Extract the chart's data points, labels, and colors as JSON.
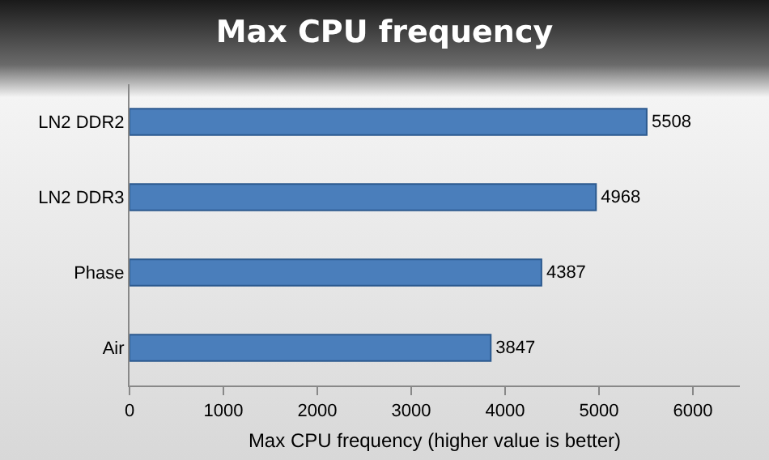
{
  "chart_data": {
    "type": "bar",
    "orientation": "horizontal",
    "title": "Max CPU frequency",
    "xlabel": "Max CPU frequency (higher value is better)",
    "categories": [
      "LN2 DDR2",
      "LN2 DDR3",
      "Phase",
      "Air"
    ],
    "values": [
      5508,
      4968,
      4387,
      3847
    ],
    "color": "#4a7ebb",
    "xlim": [
      0,
      6500
    ],
    "xticks": [
      0,
      1000,
      2000,
      3000,
      4000,
      5000,
      6000
    ],
    "data_labels": true,
    "grid": false,
    "legend": false
  }
}
